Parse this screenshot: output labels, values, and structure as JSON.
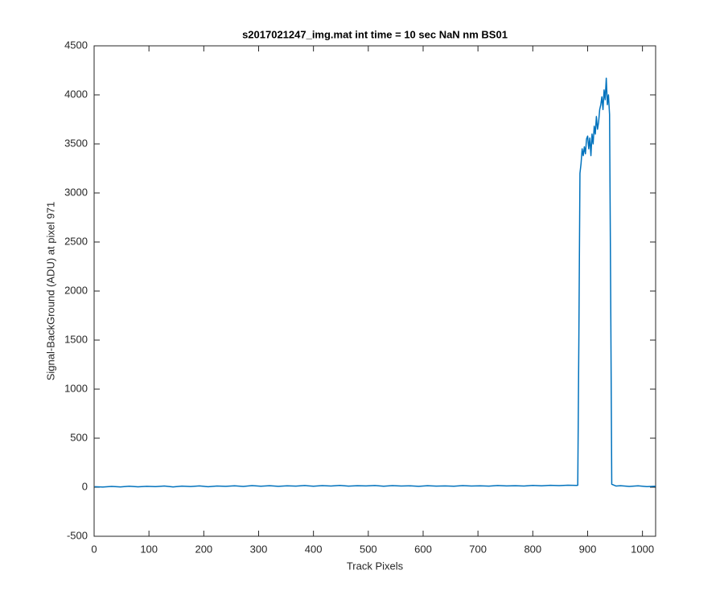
{
  "chart_data": {
    "type": "line",
    "title": "s2017021247_img.mat int time = 10 sec  NaN nm BS01",
    "xlabel": "Track Pixels",
    "ylabel": "Signal-BackGround (ADU) at pixel 971",
    "xlim": [
      0,
      1024
    ],
    "ylim": [
      -500,
      4500
    ],
    "xticks": [
      0,
      100,
      200,
      300,
      400,
      500,
      600,
      700,
      800,
      900,
      1000
    ],
    "yticks": [
      -500,
      0,
      500,
      1000,
      1500,
      2000,
      2500,
      3000,
      3500,
      4000,
      4500
    ],
    "grid": false,
    "series": [
      {
        "color": "#0072bd",
        "x": [
          1,
          16,
          32,
          48,
          64,
          80,
          96,
          112,
          128,
          144,
          160,
          176,
          192,
          208,
          224,
          240,
          256,
          272,
          288,
          304,
          320,
          336,
          352,
          368,
          384,
          400,
          416,
          432,
          448,
          464,
          480,
          496,
          512,
          528,
          544,
          560,
          576,
          592,
          608,
          624,
          640,
          656,
          672,
          688,
          704,
          720,
          736,
          752,
          768,
          784,
          800,
          816,
          832,
          848,
          864,
          880,
          882,
          884,
          886,
          888,
          890,
          892,
          894,
          896,
          898,
          900,
          902,
          904,
          906,
          908,
          910,
          912,
          914,
          916,
          918,
          920,
          922,
          924,
          926,
          928,
          930,
          932,
          934,
          936,
          938,
          940,
          942,
          944,
          952,
          960,
          976,
          992,
          1008,
          1024
        ],
        "values": [
          5,
          2,
          8,
          3,
          10,
          4,
          9,
          6,
          12,
          3,
          11,
          7,
          13,
          5,
          12,
          9,
          14,
          8,
          16,
          10,
          15,
          9,
          14,
          11,
          17,
          10,
          16,
          12,
          18,
          11,
          15,
          13,
          17,
          10,
          16,
          12,
          14,
          9,
          15,
          11,
          13,
          10,
          16,
          12,
          14,
          11,
          17,
          13,
          15,
          12,
          18,
          14,
          19,
          16,
          20,
          18,
          20,
          1500,
          3200,
          3300,
          3450,
          3380,
          3470,
          3400,
          3550,
          3580,
          3450,
          3560,
          3380,
          3600,
          3500,
          3680,
          3600,
          3780,
          3650,
          3720,
          3850,
          3900,
          3980,
          3850,
          4050,
          3950,
          4170,
          3900,
          4000,
          3800,
          2000,
          30,
          12,
          15,
          8,
          14,
          6,
          10
        ]
      }
    ]
  }
}
